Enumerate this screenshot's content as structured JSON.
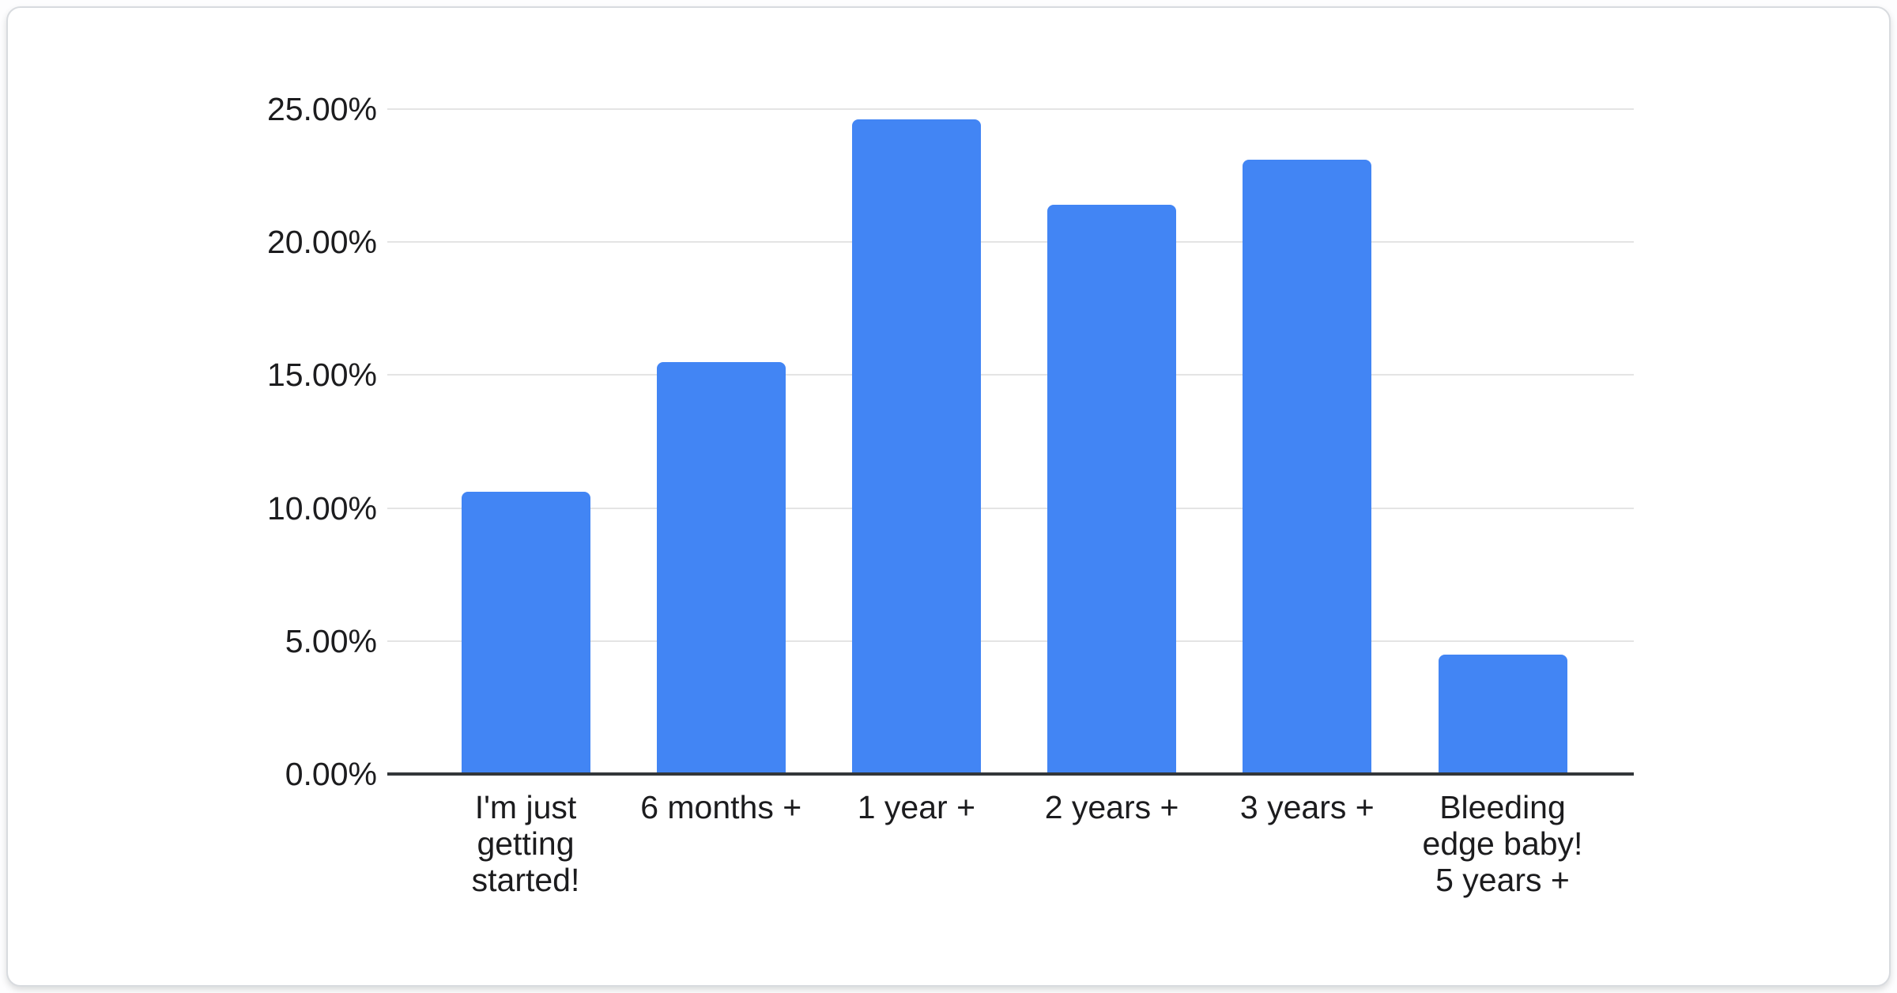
{
  "card": {
    "background": "#ffffff",
    "border_color": "#d8dbdf"
  },
  "chart_data": {
    "type": "bar",
    "title": "",
    "xlabel": "",
    "ylabel": "",
    "categories": [
      "I'm just getting started!",
      "6 months +",
      "1 year +",
      "2 years +",
      "3 years +",
      "Bleeding edge baby! 5 years +"
    ],
    "category_lines": [
      [
        "I'm just",
        "getting",
        "started!"
      ],
      [
        "6 months +"
      ],
      [
        "1 year +"
      ],
      [
        "2 years +"
      ],
      [
        "3 years +"
      ],
      [
        "Bleeding",
        "edge baby!",
        "5 years +"
      ]
    ],
    "values": [
      10.6,
      15.5,
      24.6,
      21.4,
      23.1,
      4.5
    ],
    "value_unit": "%",
    "ylim": [
      0,
      25
    ],
    "ytick_step": 5,
    "ytick_labels": [
      "0.00%",
      "5.00%",
      "10.00%",
      "15.00%",
      "20.00%",
      "25.00%"
    ],
    "grid": true,
    "legend": "none",
    "bar_color": "#4285f4",
    "grid_color": "#e4e4e4",
    "axis_line_color": "#333639",
    "label_color": "#1c1c1e"
  }
}
